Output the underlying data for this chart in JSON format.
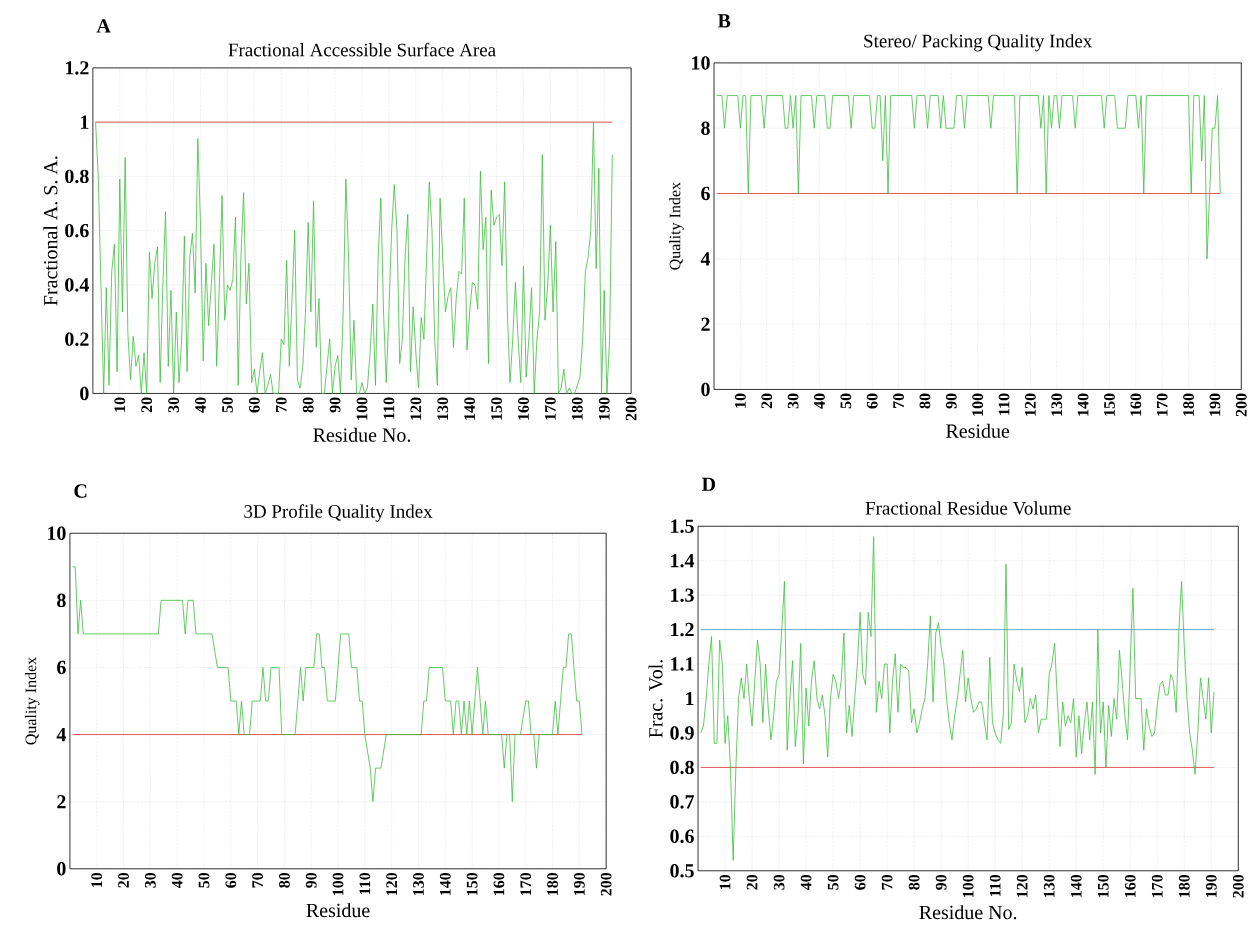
{
  "chart_data": [
    {
      "type": "line",
      "title": "Fractional Accessible Surface Area",
      "xlabel": "Residue No.",
      "ylabel": "Fractional A. S. A.",
      "annotations": [
        "A"
      ],
      "x": [
        1,
        2,
        3,
        4,
        5,
        6,
        7,
        8,
        9,
        10,
        11,
        12,
        13,
        14,
        15,
        16,
        17,
        18,
        19,
        20,
        21,
        22,
        23,
        24,
        25,
        26,
        27,
        28,
        29,
        30,
        31,
        32,
        33,
        34,
        35,
        36,
        37,
        38,
        39,
        40,
        41,
        42,
        43,
        44,
        45,
        46,
        47,
        48,
        49,
        50,
        51,
        52,
        53,
        54,
        55,
        56,
        57,
        58,
        59,
        60,
        61,
        62,
        63,
        64,
        65,
        66,
        67,
        68,
        69,
        70,
        71,
        72,
        73,
        74,
        75,
        76,
        77,
        78,
        79,
        80,
        81,
        82,
        83,
        84,
        85,
        86,
        87,
        88,
        89,
        90,
        91,
        92,
        93,
        94,
        95,
        96,
        97,
        98,
        99,
        100,
        101,
        102,
        103,
        104,
        105,
        106,
        107,
        108,
        109,
        110,
        111,
        112,
        113,
        114,
        115,
        116,
        117,
        118,
        119,
        120,
        121,
        122,
        123,
        124,
        125,
        126,
        127,
        128,
        129,
        130,
        131,
        132,
        133,
        134,
        135,
        136,
        137,
        138,
        139,
        140,
        141,
        142,
        143,
        144,
        145,
        146,
        147,
        148,
        149,
        150,
        151,
        152,
        153,
        154,
        155,
        156,
        157,
        158,
        159,
        160,
        161,
        162,
        163,
        164,
        165,
        166,
        167,
        168,
        169,
        170,
        171,
        172,
        173,
        174,
        175,
        176,
        177,
        178,
        179,
        180,
        181,
        182,
        183,
        184,
        185,
        186,
        187,
        188,
        189,
        190,
        191,
        192,
        193
      ],
      "values": [
        1.0,
        0.8,
        0.4,
        0.0,
        0.39,
        0.03,
        0.45,
        0.55,
        0.08,
        0.79,
        0.3,
        0.87,
        0.22,
        0.05,
        0.21,
        0.1,
        0.14,
        0.0,
        0.15,
        0.0,
        0.52,
        0.35,
        0.48,
        0.54,
        0.04,
        0.4,
        0.67,
        0.1,
        0.38,
        0.0,
        0.3,
        0.04,
        0.2,
        0.58,
        0.08,
        0.5,
        0.59,
        0.37,
        0.94,
        0.62,
        0.12,
        0.48,
        0.25,
        0.4,
        0.55,
        0.1,
        0.4,
        0.73,
        0.27,
        0.4,
        0.38,
        0.42,
        0.65,
        0.03,
        0.5,
        0.74,
        0.33,
        0.48,
        0.04,
        0.09,
        0.0,
        0.08,
        0.15,
        0.0,
        0.03,
        0.07,
        0.0,
        0.0,
        0.0,
        0.2,
        0.18,
        0.49,
        0.1,
        0.35,
        0.6,
        0.05,
        0.02,
        0.1,
        0.3,
        0.63,
        0.3,
        0.71,
        0.17,
        0.35,
        0.0,
        0.0,
        0.1,
        0.2,
        0.0,
        0.1,
        0.14,
        0.0,
        0.3,
        0.79,
        0.5,
        0.05,
        0.27,
        0.0,
        0.0,
        0.04,
        0.0,
        0.02,
        0.15,
        0.33,
        0.03,
        0.5,
        0.72,
        0.3,
        0.04,
        0.3,
        0.6,
        0.77,
        0.6,
        0.11,
        0.2,
        0.5,
        0.66,
        0.08,
        0.32,
        0.15,
        0.02,
        0.28,
        0.2,
        0.5,
        0.78,
        0.6,
        0.2,
        0.03,
        0.72,
        0.5,
        0.3,
        0.36,
        0.39,
        0.17,
        0.35,
        0.45,
        0.44,
        0.72,
        0.16,
        0.3,
        0.41,
        0.4,
        0.31,
        0.82,
        0.53,
        0.65,
        0.11,
        0.75,
        0.62,
        0.65,
        0.66,
        0.47,
        0.78,
        0.3,
        0.04,
        0.2,
        0.41,
        0.2,
        0.04,
        0.47,
        0.06,
        0.2,
        0.39,
        0.0,
        0.2,
        0.3,
        0.88,
        0.27,
        0.4,
        0.62,
        0.3,
        0.56,
        0.0,
        0.02,
        0.09,
        0.0,
        0.02,
        0.0,
        0.0,
        0.03,
        0.06,
        0.2,
        0.45,
        0.5,
        0.6,
        1.0,
        0.46,
        0.83,
        0.0,
        0.38,
        0.0,
        0.2,
        0.88
      ],
      "color": "#3dbf3d",
      "xlim": [
        0,
        200
      ],
      "xticks": [
        10,
        20,
        30,
        40,
        50,
        60,
        70,
        80,
        90,
        100,
        110,
        120,
        130,
        140,
        150,
        160,
        170,
        180,
        190,
        200
      ],
      "ylim": [
        0,
        1.2
      ],
      "yticks": [
        0,
        0.2,
        0.4,
        0.6,
        0.8,
        1,
        1.2
      ],
      "grid": true,
      "ref_lines": [
        {
          "axis": "y",
          "value": 1,
          "color": "#d04040"
        }
      ]
    },
    {
      "type": "line",
      "title": "Stereo/ Packing Quality Index",
      "xlabel": "Residue",
      "ylabel": "Quality Index",
      "annotations": [
        "B"
      ],
      "x": [
        1,
        3,
        4,
        5,
        9,
        10,
        11,
        12,
        13,
        14,
        18,
        19,
        20,
        26,
        27,
        28,
        29,
        30,
        31,
        32,
        33,
        37,
        38,
        39,
        42,
        43,
        44,
        45,
        51,
        52,
        53,
        59,
        60,
        61,
        62,
        63,
        64,
        65,
        66,
        67,
        75,
        76,
        77,
        80,
        81,
        82,
        85,
        86,
        87,
        88,
        91,
        92,
        94,
        95,
        96,
        104,
        105,
        106,
        114,
        115,
        116,
        123,
        124,
        125,
        126,
        127,
        128,
        129,
        130,
        131,
        132,
        136,
        137,
        138,
        147,
        148,
        149,
        152,
        153,
        156,
        157,
        160,
        161,
        162,
        163,
        164,
        180,
        181,
        182,
        184,
        185,
        186,
        187,
        188,
        189,
        190,
        191,
        192
      ],
      "values": [
        9,
        9,
        8,
        9,
        9,
        8,
        9,
        9,
        6,
        9,
        9,
        8,
        9,
        9,
        8,
        8,
        9,
        8,
        9,
        6,
        9,
        9,
        8,
        9,
        9,
        8,
        8,
        9,
        9,
        8,
        9,
        9,
        8,
        8,
        9,
        9,
        7,
        9,
        6,
        9,
        9,
        8,
        9,
        9,
        8,
        9,
        9,
        8,
        9,
        8,
        8,
        9,
        9,
        8,
        9,
        9,
        8,
        9,
        9,
        6,
        9,
        9,
        8,
        9,
        6,
        9,
        8,
        9,
        9,
        8,
        9,
        9,
        8,
        9,
        9,
        8,
        9,
        9,
        8,
        8,
        9,
        9,
        8,
        9,
        6,
        9,
        9,
        6,
        9,
        9,
        7,
        9,
        4,
        6,
        8,
        8,
        9,
        6
      ],
      "color": "#3dbf3d",
      "xlim": [
        0,
        200
      ],
      "xticks": [
        10,
        20,
        30,
        40,
        50,
        60,
        70,
        80,
        90,
        100,
        110,
        120,
        130,
        140,
        150,
        160,
        170,
        180,
        190,
        200
      ],
      "ylim": [
        0,
        10
      ],
      "yticks": [
        0,
        2,
        4,
        6,
        8,
        10
      ],
      "grid": true,
      "ref_lines": [
        {
          "axis": "y",
          "value": 6,
          "color": "#e04848"
        }
      ]
    },
    {
      "type": "line",
      "title": "3D Profile Quality Index",
      "xlabel": "Residue",
      "ylabel": "Quality Index",
      "annotations": [
        "C"
      ],
      "x": [
        1,
        2,
        3,
        4,
        5,
        33,
        34,
        42,
        43,
        44,
        46,
        47,
        53,
        55,
        59,
        60,
        62,
        63,
        64,
        65,
        67,
        68,
        71,
        72,
        73,
        74,
        75,
        78,
        79,
        84,
        86,
        87,
        88,
        91,
        92,
        93,
        94,
        95,
        96,
        99,
        100,
        101,
        104,
        105,
        107,
        108,
        109,
        110,
        112,
        113,
        114,
        116,
        118,
        131,
        132,
        133,
        134,
        139,
        140,
        142,
        143,
        144,
        145,
        146,
        147,
        148,
        149,
        150,
        151,
        152,
        153,
        154,
        155,
        156,
        161,
        162,
        163,
        164,
        165,
        166,
        168,
        170,
        171,
        172,
        173,
        174,
        175,
        180,
        181,
        182,
        183,
        184,
        185,
        186,
        187,
        188,
        189,
        190,
        191
      ],
      "values": [
        9,
        9,
        7,
        8,
        7,
        7,
        8,
        8,
        7,
        8,
        8,
        7,
        7,
        6,
        6,
        5,
        5,
        4,
        5,
        4,
        4,
        5,
        5,
        6,
        5,
        5,
        6,
        6,
        4,
        4,
        6,
        5,
        6,
        6,
        7,
        7,
        6,
        6,
        5,
        5,
        6,
        7,
        7,
        6,
        6,
        5,
        5,
        4,
        3,
        2,
        3,
        3,
        4,
        4,
        5,
        5,
        6,
        6,
        5,
        5,
        4,
        5,
        5,
        4,
        5,
        4,
        5,
        4,
        5,
        6,
        5,
        4,
        5,
        4,
        4,
        3,
        4,
        4,
        2,
        4,
        4,
        5,
        5,
        4,
        4,
        3,
        4,
        4,
        5,
        4,
        5,
        6,
        6,
        7,
        7,
        6,
        5,
        5,
        4
      ],
      "color": "#3dbf3d",
      "xlim": [
        0,
        200
      ],
      "xticks": [
        10,
        20,
        30,
        40,
        50,
        60,
        70,
        80,
        90,
        100,
        110,
        120,
        130,
        140,
        150,
        160,
        170,
        180,
        190,
        200
      ],
      "ylim": [
        0,
        10
      ],
      "yticks": [
        0,
        2,
        4,
        6,
        8,
        10
      ],
      "grid": true,
      "ref_lines": [
        {
          "axis": "y",
          "value": 4,
          "color": "#e04848"
        }
      ]
    },
    {
      "type": "line",
      "title": "Fractional Residue Volume",
      "xlabel": "Residue No.",
      "ylabel": "Frac. Vol.",
      "annotations": [
        "D"
      ],
      "x": [
        1,
        2,
        3,
        4,
        5,
        6,
        7,
        8,
        9,
        10,
        11,
        12,
        13,
        14,
        15,
        16,
        17,
        18,
        19,
        20,
        21,
        22,
        23,
        24,
        25,
        26,
        27,
        28,
        29,
        30,
        31,
        32,
        33,
        34,
        35,
        36,
        37,
        38,
        39,
        40,
        41,
        42,
        43,
        44,
        45,
        46,
        47,
        48,
        49,
        50,
        51,
        52,
        53,
        54,
        55,
        56,
        57,
        58,
        59,
        60,
        61,
        62,
        63,
        64,
        65,
        66,
        67,
        68,
        69,
        70,
        71,
        72,
        73,
        74,
        75,
        76,
        77,
        78,
        79,
        80,
        81,
        82,
        83,
        84,
        85,
        86,
        87,
        88,
        89,
        90,
        91,
        92,
        93,
        94,
        95,
        96,
        97,
        98,
        99,
        100,
        101,
        102,
        103,
        104,
        105,
        106,
        107,
        108,
        109,
        110,
        111,
        112,
        113,
        114,
        115,
        116,
        117,
        118,
        119,
        120,
        121,
        122,
        123,
        124,
        125,
        126,
        127,
        128,
        129,
        130,
        131,
        132,
        133,
        134,
        135,
        136,
        137,
        138,
        139,
        140,
        141,
        142,
        143,
        144,
        145,
        146,
        147,
        148,
        149,
        150,
        151,
        152,
        153,
        154,
        155,
        156,
        157,
        158,
        159,
        160,
        161,
        162,
        163,
        164,
        165,
        166,
        167,
        168,
        169,
        170,
        171,
        172,
        173,
        174,
        175,
        176,
        177,
        178,
        179,
        180,
        181,
        182,
        183,
        184,
        185,
        186,
        187,
        188,
        189,
        190,
        191
      ],
      "values": [
        0.9,
        0.92,
        1.0,
        1.1,
        1.18,
        0.87,
        0.87,
        1.17,
        1.1,
        0.87,
        0.95,
        0.8,
        0.53,
        0.8,
        1.0,
        1.06,
        1.0,
        1.1,
        1.0,
        0.92,
        1.05,
        1.17,
        1.1,
        0.93,
        1.1,
        0.97,
        0.88,
        0.95,
        1.05,
        1.07,
        1.2,
        1.34,
        0.85,
        1.0,
        1.11,
        0.86,
        0.95,
        1.16,
        0.81,
        1.03,
        0.92,
        1.05,
        1.11,
        1.0,
        0.97,
        1.01,
        0.95,
        0.83,
        1.0,
        1.07,
        1.05,
        1.0,
        1.05,
        1.19,
        0.9,
        0.98,
        0.89,
        1.0,
        1.1,
        1.25,
        1.07,
        1.04,
        1.25,
        1.18,
        1.47,
        0.96,
        1.05,
        1.0,
        1.1,
        1.1,
        0.9,
        1.05,
        1.13,
        0.96,
        1.1,
        1.09,
        1.09,
        1.08,
        0.93,
        0.97,
        0.9,
        0.93,
        0.97,
        1.0,
        1.1,
        1.24,
        0.99,
        1.19,
        1.22,
        1.15,
        1.1,
        1.0,
        0.93,
        0.88,
        0.95,
        1.0,
        1.07,
        1.14,
        0.99,
        1.06,
        1.0,
        0.96,
        0.97,
        0.99,
        0.99,
        0.93,
        0.88,
        1.12,
        0.93,
        0.9,
        0.88,
        0.87,
        0.95,
        1.39,
        0.91,
        0.93,
        1.1,
        1.05,
        1.02,
        1.09,
        0.93,
        0.95,
        1.0,
        0.97,
        1.01,
        0.9,
        0.94,
        0.94,
        0.94,
        1.07,
        1.1,
        1.16,
        1.0,
        0.86,
        0.99,
        0.92,
        0.95,
        0.93,
        1.0,
        0.83,
        0.95,
        0.84,
        0.93,
        0.99,
        0.88,
        0.99,
        0.78,
        1.2,
        0.9,
        0.99,
        0.8,
        0.98,
        0.89,
        1.0,
        0.94,
        1.14,
        1.05,
        0.95,
        0.88,
        1.1,
        1.32,
        1.0,
        1.0,
        1.0,
        0.85,
        0.97,
        0.92,
        0.89,
        0.9,
        0.98,
        1.04,
        1.05,
        1.01,
        1.01,
        1.07,
        1.05,
        0.96,
        1.2,
        1.34,
        1.15,
        1.0,
        0.9,
        0.85,
        0.78,
        0.9,
        1.06,
        1.0,
        0.94,
        1.06,
        0.9,
        1.02
      ],
      "color": "#3dbf3d",
      "xlim": [
        0,
        200
      ],
      "xticks": [
        10,
        20,
        30,
        40,
        50,
        60,
        70,
        80,
        90,
        100,
        110,
        120,
        130,
        140,
        150,
        160,
        170,
        180,
        190,
        200
      ],
      "ylim": [
        0.5,
        1.5
      ],
      "yticks": [
        0.5,
        0.6,
        0.7,
        0.8,
        0.9,
        1,
        1.1,
        1.2,
        1.3,
        1.4,
        1.5
      ],
      "grid": true,
      "ref_lines": [
        {
          "axis": "y",
          "value": 1.2,
          "color": "#5aa0c8"
        },
        {
          "axis": "y",
          "value": 0.8,
          "color": "#e04848"
        }
      ]
    }
  ]
}
